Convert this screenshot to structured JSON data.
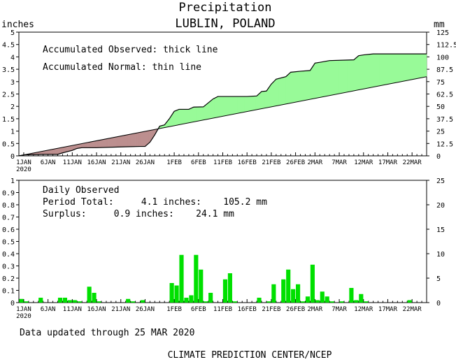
{
  "header": {
    "title": "Precipitation",
    "location": "LUBLIN, POLAND",
    "left_unit": "inches",
    "right_unit": "mm"
  },
  "footer": {
    "updated": "Data updated through 25 MAR 2020",
    "agency": "CLIMATE PREDICTION CENTER/NCEP"
  },
  "chart_data": [
    {
      "type": "area",
      "name": "accumulated",
      "legend": [
        "Accumulated Observed: thick line",
        "Accumulated Normal: thin line"
      ],
      "ylabel_left": "inches",
      "ylabel_right": "mm",
      "ylim": [
        0,
        5
      ],
      "ylim_right": [
        0,
        125
      ],
      "yticks_left": [
        "0",
        "0.5",
        "1",
        "1.5",
        "2",
        "2.5",
        "3",
        "3.5",
        "4",
        "4.5",
        "5"
      ],
      "yticks_right": [
        "0",
        "12.5",
        "25",
        "37.5",
        "50",
        "62.5",
        "75",
        "87.5",
        "100",
        "112.5",
        "125"
      ],
      "x_ticks": [
        {
          "day": 1,
          "label": "1JAN",
          "sub": "2020"
        },
        {
          "day": 6,
          "label": "6JAN"
        },
        {
          "day": 11,
          "label": "11JAN"
        },
        {
          "day": 16,
          "label": "16JAN"
        },
        {
          "day": 21,
          "label": "21JAN"
        },
        {
          "day": 26,
          "label": "26JAN"
        },
        {
          "day": 32,
          "label": "1FEB"
        },
        {
          "day": 37,
          "label": "6FEB"
        },
        {
          "day": 42,
          "label": "11FEB"
        },
        {
          "day": 47,
          "label": "16FEB"
        },
        {
          "day": 52,
          "label": "21FEB"
        },
        {
          "day": 57,
          "label": "26FEB"
        },
        {
          "day": 61,
          "label": "2MAR"
        },
        {
          "day": 66,
          "label": "7MAR"
        },
        {
          "day": 71,
          "label": "12MAR"
        },
        {
          "day": 76,
          "label": "17MAR"
        },
        {
          "day": 81,
          "label": "22MAR"
        }
      ],
      "observed": [
        [
          0,
          0
        ],
        [
          1,
          0.04
        ],
        [
          3,
          0.05
        ],
        [
          5,
          0.06
        ],
        [
          8,
          0.06
        ],
        [
          9,
          0.12
        ],
        [
          11,
          0.22
        ],
        [
          12,
          0.3
        ],
        [
          13,
          0.33
        ],
        [
          16,
          0.33
        ],
        [
          21,
          0.36
        ],
        [
          23,
          0.37
        ],
        [
          25,
          0.38
        ],
        [
          26,
          0.38
        ],
        [
          27,
          0.55
        ],
        [
          28,
          0.85
        ],
        [
          29,
          1.2
        ],
        [
          30,
          1.25
        ],
        [
          31,
          1.5
        ],
        [
          32,
          1.8
        ],
        [
          33,
          1.88
        ],
        [
          35,
          1.88
        ],
        [
          36,
          1.97
        ],
        [
          38,
          1.98
        ],
        [
          40,
          2.3
        ],
        [
          41,
          2.4
        ],
        [
          47,
          2.4
        ],
        [
          49,
          2.42
        ],
        [
          50,
          2.6
        ],
        [
          51,
          2.62
        ],
        [
          52,
          2.9
        ],
        [
          53,
          3.1
        ],
        [
          55,
          3.2
        ],
        [
          56,
          3.38
        ],
        [
          58,
          3.42
        ],
        [
          60,
          3.45
        ],
        [
          61,
          3.75
        ],
        [
          62,
          3.78
        ],
        [
          64,
          3.85
        ],
        [
          69,
          3.88
        ],
        [
          70,
          4.05
        ],
        [
          71,
          4.08
        ],
        [
          73,
          4.12
        ],
        [
          84,
          4.12
        ]
      ],
      "normal": [
        [
          0,
          0
        ],
        [
          84,
          3.2
        ]
      ]
    },
    {
      "type": "bar",
      "name": "daily",
      "legend": [
        "Daily Observed"
      ],
      "period_total": "Period Total:     4.1 inches:    105.2 mm",
      "surplus": "Surplus:     0.9 inches:    24.1 mm",
      "ylim": [
        0,
        1
      ],
      "ylim_right": [
        0,
        25
      ],
      "yticks_left": [
        "0",
        "0.1",
        "0.2",
        "0.3",
        "0.4",
        "0.5",
        "0.6",
        "0.7",
        "0.8",
        "0.9",
        "1"
      ],
      "yticks_right": [
        "0",
        "5",
        "10",
        "15",
        "20",
        "25"
      ],
      "bars": [
        [
          0,
          0.03
        ],
        [
          1,
          0.01
        ],
        [
          4,
          0.04
        ],
        [
          8,
          0.04
        ],
        [
          9,
          0.04
        ],
        [
          10,
          0.02
        ],
        [
          11,
          0.02
        ],
        [
          12,
          0.01
        ],
        [
          14,
          0.13
        ],
        [
          15,
          0.08
        ],
        [
          16,
          0.01
        ],
        [
          22,
          0.03
        ],
        [
          23,
          0.01
        ],
        [
          25,
          0.02
        ],
        [
          31,
          0.16
        ],
        [
          32,
          0.14
        ],
        [
          33,
          0.39
        ],
        [
          34,
          0.04
        ],
        [
          35,
          0.06
        ],
        [
          36,
          0.39
        ],
        [
          37,
          0.27
        ],
        [
          38,
          0.01
        ],
        [
          39,
          0.08
        ],
        [
          42,
          0.19
        ],
        [
          43,
          0.24
        ],
        [
          44,
          0.01
        ],
        [
          49,
          0.04
        ],
        [
          51,
          0.01
        ],
        [
          52,
          0.15
        ],
        [
          54,
          0.19
        ],
        [
          55,
          0.27
        ],
        [
          56,
          0.11
        ],
        [
          57,
          0.15
        ],
        [
          58,
          0.01
        ],
        [
          59,
          0.05
        ],
        [
          60,
          0.31
        ],
        [
          61,
          0.02
        ],
        [
          62,
          0.09
        ],
        [
          63,
          0.05
        ],
        [
          64,
          0.01
        ],
        [
          66,
          0.01
        ],
        [
          68,
          0.12
        ],
        [
          69,
          0.02
        ],
        [
          70,
          0.07
        ],
        [
          71,
          0.01
        ],
        [
          80,
          0.02
        ]
      ]
    }
  ],
  "colors": {
    "surplus_fill": "#98fa98",
    "deficit_fill": "#bc8f8f",
    "bar": "#00e000",
    "line": "#000000"
  }
}
